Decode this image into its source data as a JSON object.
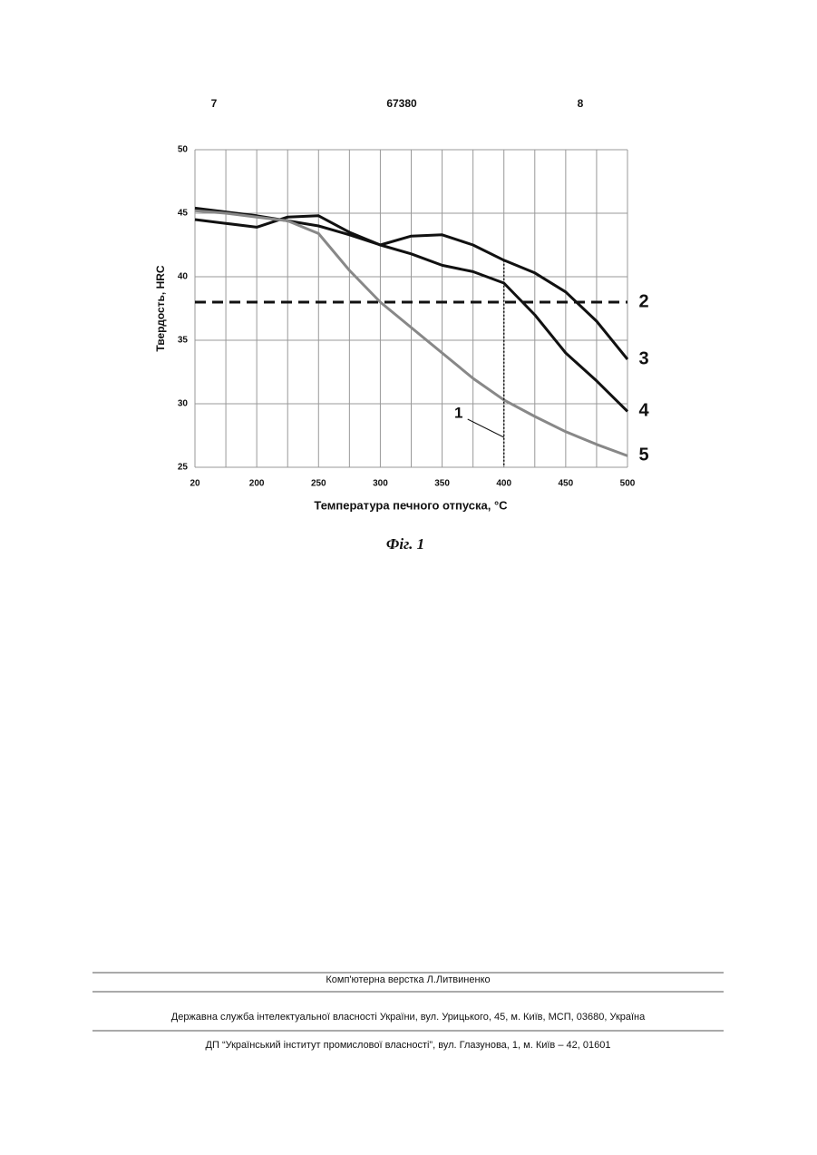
{
  "header": {
    "left": "7",
    "center": "67380",
    "right": "8"
  },
  "chart_data": {
    "type": "line",
    "ylabel": "Твердость, HRC",
    "xlabel": "Температура печного отпуска, °C",
    "categories": [
      "20",
      null,
      "200",
      null,
      "250",
      null,
      "300",
      null,
      "350",
      null,
      "400",
      null,
      "450",
      null,
      "500"
    ],
    "ylim": [
      25,
      50
    ],
    "yticks": [
      25,
      30,
      35,
      40,
      45,
      50
    ],
    "grid": true,
    "series": [
      {
        "name": "2",
        "color": "#111111",
        "line_style": "dashed",
        "values": [
          38,
          38,
          38,
          38,
          38,
          38,
          38,
          38,
          38,
          38,
          38,
          38,
          38,
          38,
          38
        ]
      },
      {
        "name": "3",
        "color": "#111111",
        "line_style": "solid",
        "values": [
          44.5,
          44.2,
          43.9,
          44.7,
          44.8,
          43.5,
          42.5,
          43.2,
          43.3,
          42.5,
          41.3,
          40.3,
          38.8,
          36.5,
          33.5
        ]
      },
      {
        "name": "4",
        "color": "#111111",
        "line_style": "solid",
        "values": [
          45.4,
          45.1,
          44.8,
          44.4,
          44.0,
          43.3,
          42.5,
          41.8,
          40.9,
          40.4,
          39.5,
          37.0,
          34.0,
          31.8,
          29.4
        ]
      },
      {
        "name": "5",
        "color": "#888888",
        "line_style": "solid",
        "values": [
          45.2,
          45.0,
          44.7,
          44.4,
          43.4,
          40.5,
          38.0,
          36.0,
          34.0,
          32.0,
          30.3,
          29.0,
          27.8,
          26.8,
          25.9
        ]
      }
    ],
    "annotation": "1"
  },
  "caption": "Фіг. 1",
  "footer": [
    "Комп'ютерна верстка Л.Литвиненко",
    "Державна служба інтелектуальної власності України, вул. Урицького, 45, м. Київ, МСП, 03680, Україна",
    "ДП “Український інститут промислової власності”, вул. Глазунова, 1, м. Київ – 42, 01601"
  ]
}
